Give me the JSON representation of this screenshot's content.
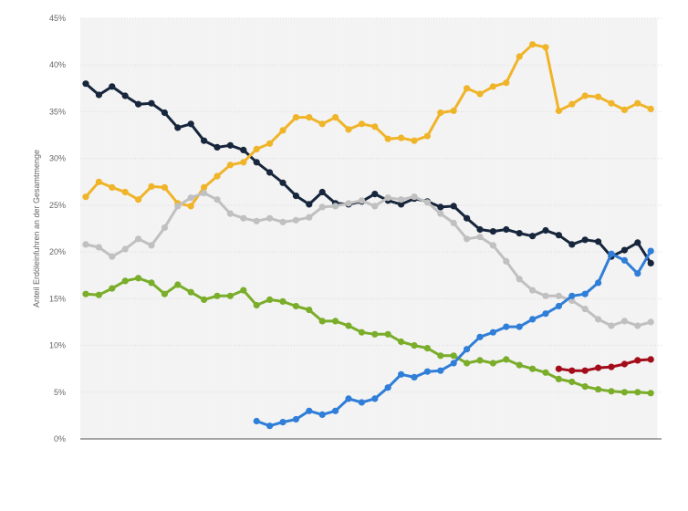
{
  "chart_data": {
    "type": "line",
    "title": "",
    "xlabel": "",
    "ylabel": "Anteil Erdöleinfuhren an der Gesamtmenge",
    "ylim": [
      0,
      45
    ],
    "yticks": [
      0,
      5,
      10,
      15,
      20,
      25,
      30,
      35,
      40,
      45
    ],
    "ytick_labels": [
      "0%",
      "5%",
      "10%",
      "15%",
      "20%",
      "25%",
      "30%",
      "35%",
      "40%",
      "45%"
    ],
    "grid": true,
    "legend": "none",
    "x": [
      1,
      2,
      3,
      4,
      5,
      6,
      7,
      8,
      9,
      10,
      11,
      12,
      13,
      14,
      15,
      16,
      17,
      18,
      19,
      20,
      21,
      22,
      23,
      24,
      25,
      26,
      27,
      28,
      29,
      30,
      31,
      32,
      33,
      34,
      35,
      36,
      37,
      38,
      39,
      40,
      41,
      42,
      43,
      44
    ],
    "series": [
      {
        "color": "#17263c",
        "values": [
          38.0,
          36.8,
          37.7,
          36.7,
          35.8,
          35.9,
          34.9,
          33.3,
          33.7,
          31.9,
          31.2,
          31.4,
          30.9,
          29.6,
          28.5,
          27.4,
          26.0,
          25.1,
          26.4,
          25.2,
          25.1,
          25.4,
          26.2,
          25.5,
          25.1,
          25.7,
          25.4,
          24.8,
          24.9,
          23.6,
          22.4,
          22.2,
          22.4,
          22.0,
          21.7,
          22.3,
          21.8,
          20.8,
          21.3,
          21.1,
          19.5,
          20.2,
          21.0,
          18.8
        ]
      },
      {
        "color": "#f0b429",
        "values": [
          25.9,
          27.5,
          26.9,
          26.4,
          25.6,
          27.0,
          26.9,
          25.2,
          24.9,
          26.9,
          28.1,
          29.3,
          29.6,
          31.0,
          31.6,
          33.0,
          34.4,
          34.4,
          33.7,
          34.4,
          33.1,
          33.7,
          33.4,
          32.1,
          32.2,
          31.9,
          32.4,
          34.9,
          35.1,
          37.5,
          36.9,
          37.7,
          38.1,
          40.9,
          42.2,
          41.9,
          35.1,
          35.8,
          36.7,
          36.6,
          35.9,
          35.2,
          35.9,
          35.3
        ]
      },
      {
        "color": "#c0c0c0",
        "values": [
          20.8,
          20.5,
          19.5,
          20.3,
          21.4,
          20.7,
          22.6,
          24.9,
          25.8,
          26.3,
          25.6,
          24.1,
          23.6,
          23.3,
          23.6,
          23.2,
          23.4,
          23.7,
          24.8,
          24.9,
          25.2,
          25.5,
          24.9,
          25.8,
          25.6,
          25.9,
          25.3,
          24.1,
          23.1,
          21.4,
          21.6,
          20.7,
          19.0,
          17.1,
          15.9,
          15.3,
          15.3,
          14.8,
          13.9,
          12.8,
          12.1,
          12.6,
          12.1,
          12.5
        ]
      },
      {
        "color": "#7aad2a",
        "values": [
          15.5,
          15.4,
          16.1,
          16.9,
          17.2,
          16.7,
          15.5,
          16.5,
          15.7,
          14.9,
          15.3,
          15.3,
          15.9,
          14.3,
          14.9,
          14.7,
          14.2,
          13.8,
          12.6,
          12.6,
          12.1,
          11.4,
          11.2,
          11.2,
          10.4,
          10.0,
          9.7,
          8.9,
          8.9,
          8.1,
          8.4,
          8.1,
          8.5,
          7.9,
          7.5,
          7.1,
          6.4,
          6.1,
          5.6,
          5.3,
          5.1,
          5.0,
          5.0,
          4.9
        ]
      },
      {
        "color": "#2f7ed8",
        "values": [
          null,
          null,
          null,
          null,
          null,
          null,
          null,
          null,
          null,
          null,
          null,
          null,
          null,
          1.9,
          1.4,
          1.8,
          2.1,
          3.0,
          2.6,
          3.0,
          4.3,
          3.9,
          4.3,
          5.5,
          6.9,
          6.6,
          7.2,
          7.3,
          8.1,
          9.6,
          10.9,
          11.4,
          12.0,
          12.0,
          12.8,
          13.4,
          14.2,
          15.3,
          15.5,
          16.7,
          19.8,
          19.1,
          17.7,
          20.1
        ]
      },
      {
        "color": "#a30d1b",
        "values": [
          null,
          null,
          null,
          null,
          null,
          null,
          null,
          null,
          null,
          null,
          null,
          null,
          null,
          null,
          null,
          null,
          null,
          null,
          null,
          null,
          null,
          null,
          null,
          null,
          null,
          null,
          null,
          null,
          null,
          null,
          null,
          null,
          null,
          null,
          null,
          null,
          7.5,
          7.3,
          7.3,
          7.6,
          7.7,
          8.0,
          8.4,
          8.5
        ]
      }
    ]
  }
}
